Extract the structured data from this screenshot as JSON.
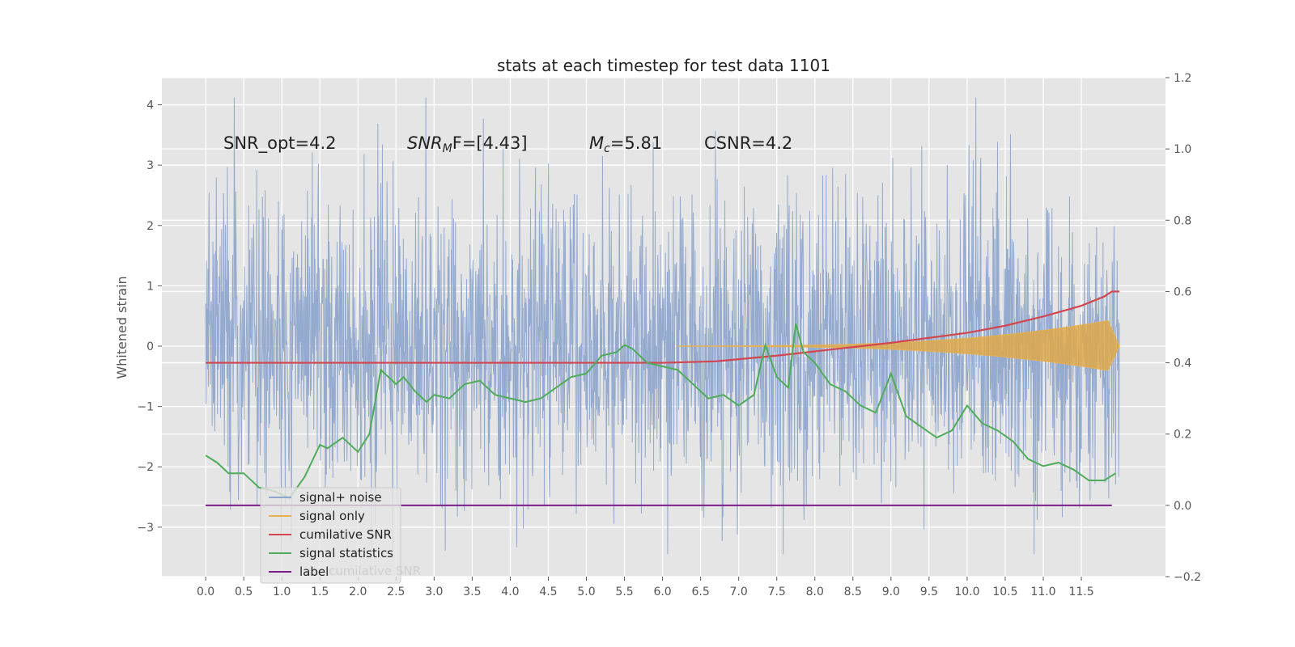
{
  "chart_data": {
    "type": "line",
    "title": "stats at each timestep for test data 1101",
    "xlabel": "",
    "ylabel_left": "Whitened strain",
    "ylabel_right": "",
    "xlim": [
      -0.575,
      12.605
    ],
    "ylim_left": [
      -3.82,
      4.45
    ],
    "ylim_right": [
      -0.2,
      1.2
    ],
    "x_ticks": [
      "0.0",
      "0.5",
      "1.0",
      "1.5",
      "2.0",
      "2.5",
      "3.0",
      "3.5",
      "4.0",
      "4.5",
      "5.0",
      "5.5",
      "6.0",
      "6.5",
      "7.0",
      "7.5",
      "8.0",
      "8.5",
      "9.0",
      "9.5",
      "10.0",
      "10.5",
      "11.0",
      "11.5"
    ],
    "y_ticks_left": [
      "4",
      "3",
      "2",
      "1",
      "0",
      "−1",
      "−2",
      "−3"
    ],
    "y_ticks_right": [
      "1.2",
      "1.0",
      "0.8",
      "0.6",
      "0.4",
      "0.2",
      "0.0",
      "−0.2"
    ],
    "grid": true,
    "legend_position": "lower-left",
    "annotations": {
      "snr_opt": "SNR_opt=4.2",
      "snr_mf_main": "SNR",
      "snr_mf_sub": "M",
      "snr_mf_rest": "F=[4.43]",
      "mc_main": "M",
      "mc_sub": "c",
      "mc_rest": "=5.81",
      "csnr": "CSNR=4.2"
    },
    "series": [
      {
        "name": "signal+ noise",
        "color": "#8fa6cc",
        "axis": "left",
        "note_range": [
          -3.45,
          4.12
        ]
      },
      {
        "name": "signal only",
        "color": "#e8b04f",
        "axis": "left"
      },
      {
        "name": "cumilative SNR",
        "color": "#d1464f",
        "axis": "left",
        "x": [
          0.0,
          6.0,
          6.7,
          7.5,
          8.0,
          9.0,
          10.0,
          10.5,
          11.0,
          11.5,
          11.8,
          11.9,
          12.0
        ],
        "values": [
          0.0,
          0.0,
          0.02,
          0.1,
          0.16,
          0.28,
          0.42,
          0.52,
          0.65,
          0.8,
          0.93,
          1.0,
          1.0
        ]
      },
      {
        "name": "signal statistics",
        "color": "#4fac5a",
        "axis": "right",
        "x": [
          0.0,
          0.15,
          0.3,
          0.5,
          0.7,
          0.9,
          1.1,
          1.3,
          1.5,
          1.6,
          1.8,
          2.0,
          2.15,
          2.3,
          2.5,
          2.6,
          2.75,
          2.9,
          3.0,
          3.2,
          3.4,
          3.6,
          3.8,
          4.0,
          4.2,
          4.4,
          4.6,
          4.8,
          5.0,
          5.2,
          5.4,
          5.5,
          5.6,
          5.8,
          6.0,
          6.2,
          6.4,
          6.6,
          6.8,
          7.0,
          7.2,
          7.35,
          7.5,
          7.65,
          7.75,
          7.85,
          8.0,
          8.2,
          8.4,
          8.6,
          8.8,
          9.0,
          9.2,
          9.4,
          9.6,
          9.8,
          10.0,
          10.2,
          10.4,
          10.6,
          10.8,
          11.0,
          11.2,
          11.4,
          11.6,
          11.8,
          11.95
        ],
        "values": [
          0.14,
          0.12,
          0.09,
          0.09,
          0.05,
          0.04,
          0.02,
          0.08,
          0.17,
          0.16,
          0.19,
          0.15,
          0.2,
          0.38,
          0.34,
          0.36,
          0.32,
          0.29,
          0.31,
          0.3,
          0.34,
          0.35,
          0.31,
          0.3,
          0.29,
          0.3,
          0.33,
          0.36,
          0.37,
          0.42,
          0.43,
          0.45,
          0.44,
          0.4,
          0.39,
          0.38,
          0.34,
          0.3,
          0.31,
          0.28,
          0.31,
          0.45,
          0.36,
          0.33,
          0.51,
          0.43,
          0.4,
          0.34,
          0.32,
          0.28,
          0.26,
          0.37,
          0.25,
          0.22,
          0.19,
          0.21,
          0.28,
          0.23,
          0.21,
          0.18,
          0.13,
          0.11,
          0.12,
          0.1,
          0.07,
          0.07,
          0.09
        ]
      },
      {
        "name": "label",
        "color": "#7a1f87",
        "axis": "right",
        "x": [
          0.0,
          11.9
        ],
        "values": [
          0.0,
          0.0
        ]
      }
    ],
    "legend_hidden_text": "cumilative SNR"
  }
}
